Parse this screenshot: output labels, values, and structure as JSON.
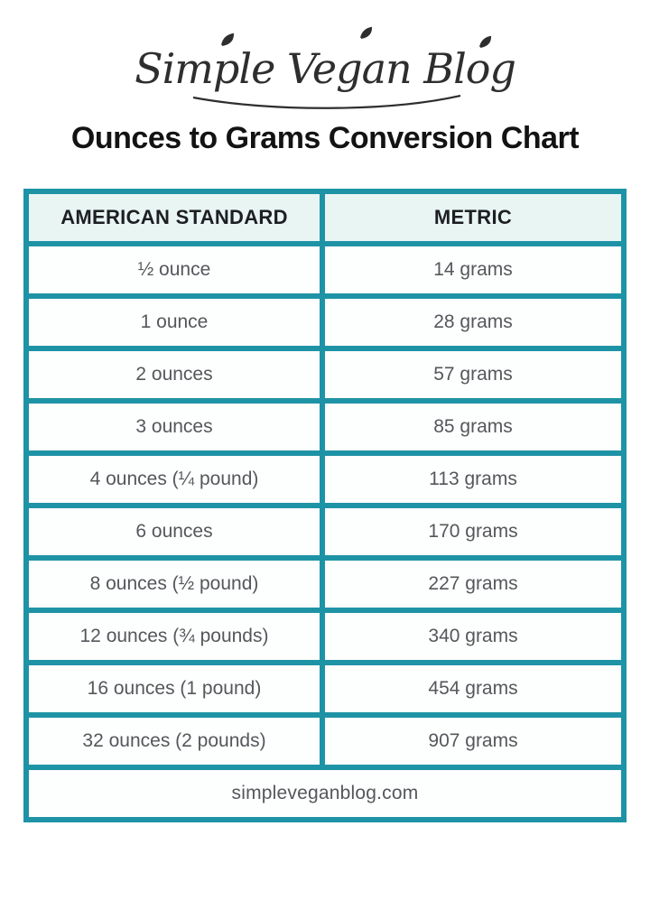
{
  "logo": {
    "text": "Simple Vegan Blog"
  },
  "title": "Ounces to Grams Conversion Chart",
  "table": {
    "headers": [
      "AMERICAN STANDARD",
      "METRIC"
    ],
    "rows": [
      [
        "½ ounce",
        "14 grams"
      ],
      [
        "1 ounce",
        "28 grams"
      ],
      [
        "2 ounces",
        "57 grams"
      ],
      [
        "3 ounces",
        "85 grams"
      ],
      [
        "4 ounces (¼ pound)",
        "113 grams"
      ],
      [
        "6 ounces",
        "170 grams"
      ],
      [
        "8 ounces (½ pound)",
        "227 grams"
      ],
      [
        "12 ounces (¾ pounds)",
        "340 grams"
      ],
      [
        "16 ounces (1 pound)",
        "454 grams"
      ],
      [
        "32 ounces (2 pounds)",
        "907 grams"
      ]
    ],
    "footer": "simpleveganblog.com"
  },
  "colors": {
    "accent": "#1f93a6",
    "header_bg": "#e9f5f2",
    "header_text": "#1d1f23",
    "cell_text": "#56575b",
    "title": "#131313",
    "logo": "#2e2e2e"
  },
  "chart_data": {
    "type": "table",
    "title": "Ounces to Grams Conversion Chart",
    "columns": [
      "AMERICAN STANDARD",
      "METRIC"
    ],
    "rows": [
      {
        "american_standard": "½ ounce",
        "ounces": 0.5,
        "metric": "14 grams",
        "grams": 14
      },
      {
        "american_standard": "1 ounce",
        "ounces": 1,
        "metric": "28 grams",
        "grams": 28
      },
      {
        "american_standard": "2 ounces",
        "ounces": 2,
        "metric": "57 grams",
        "grams": 57
      },
      {
        "american_standard": "3 ounces",
        "ounces": 3,
        "metric": "85 grams",
        "grams": 85
      },
      {
        "american_standard": "4 ounces (¼ pound)",
        "ounces": 4,
        "metric": "113 grams",
        "grams": 113
      },
      {
        "american_standard": "6 ounces",
        "ounces": 6,
        "metric": "170 grams",
        "grams": 170
      },
      {
        "american_standard": "8 ounces (½ pound)",
        "ounces": 8,
        "metric": "227 grams",
        "grams": 227
      },
      {
        "american_standard": "12 ounces (¾ pounds)",
        "ounces": 12,
        "metric": "340 grams",
        "grams": 340
      },
      {
        "american_standard": "16 ounces (1 pound)",
        "ounces": 16,
        "metric": "454 grams",
        "grams": 454
      },
      {
        "american_standard": "32 ounces (2 pounds)",
        "ounces": 32,
        "metric": "907 grams",
        "grams": 907
      }
    ],
    "source_label": "simpleveganblog.com"
  }
}
